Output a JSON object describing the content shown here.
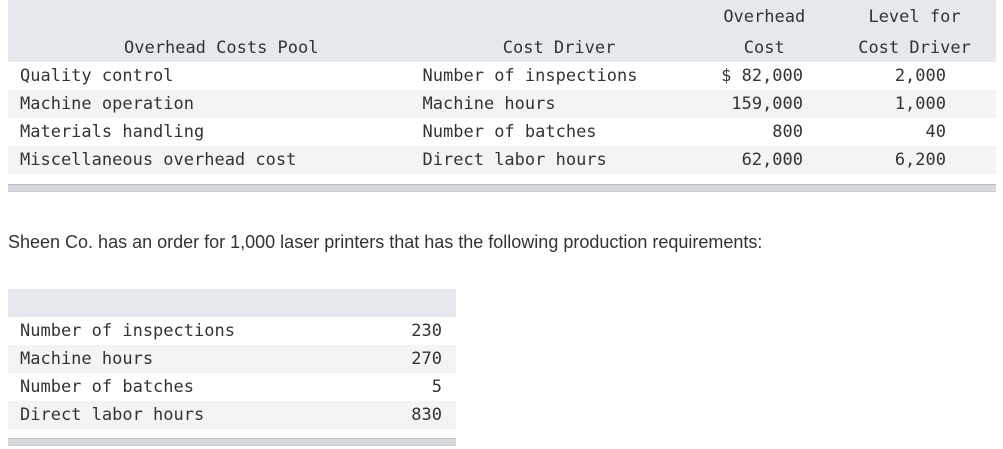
{
  "overhead_table": {
    "headers": {
      "pool": "Overhead Costs Pool",
      "driver": "Cost Driver",
      "cost_line1": "Overhead",
      "cost_line2": "Cost",
      "level_line1": "Level for",
      "level_line2": "Cost Driver"
    },
    "rows": [
      {
        "pool": "Quality control",
        "driver": "Number of inspections",
        "cost": "$ 82,000",
        "level": "2,000"
      },
      {
        "pool": "Machine operation",
        "driver": "Machine hours",
        "cost": "159,000",
        "level": "1,000"
      },
      {
        "pool": "Materials handling",
        "driver": "Number of batches",
        "cost": "800",
        "level": "40"
      },
      {
        "pool": "Miscellaneous overhead cost",
        "driver": "Direct labor hours",
        "cost": "62,000",
        "level": "6,200"
      }
    ]
  },
  "paragraph": "Sheen Co. has an order for 1,000 laser printers that has the following production requirements:",
  "requirements_table": {
    "rows": [
      {
        "label": "Number of inspections",
        "value": "230"
      },
      {
        "label": "Machine hours",
        "value": "270"
      },
      {
        "label": "Number of batches",
        "value": "5"
      },
      {
        "label": "Direct labor hours",
        "value": "830"
      }
    ]
  }
}
